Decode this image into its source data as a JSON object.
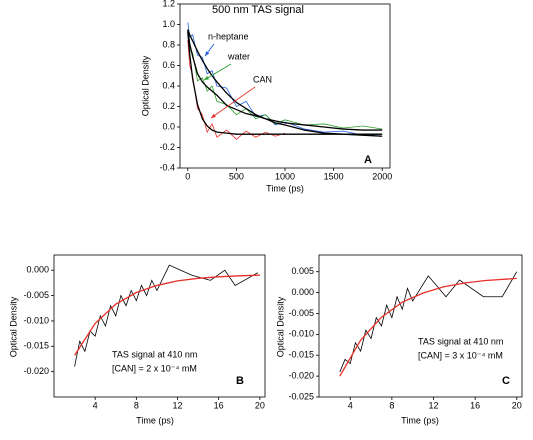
{
  "chart_data": [
    {
      "type": "line",
      "panel_label": "A",
      "x_label": "Time (ps)",
      "y_label": "Optical Density",
      "x": [
        0,
        20,
        50,
        100,
        150,
        200,
        250,
        300,
        400,
        500,
        600,
        700,
        800,
        900,
        1000,
        1200,
        1400,
        1600,
        1800,
        2000
      ],
      "series": [
        {
          "name": "n-heptane",
          "color": "#1f5fd8",
          "values": [
            1.02,
            0.88,
            0.9,
            0.7,
            0.68,
            0.52,
            0.55,
            0.4,
            0.38,
            0.2,
            0.25,
            0.1,
            0.12,
            0.02,
            0.05,
            -0.02,
            -0.05,
            -0.04,
            -0.08,
            -0.07
          ]
        },
        {
          "name": "water",
          "color": "#2ca02c",
          "values": [
            0.92,
            0.75,
            0.72,
            0.45,
            0.48,
            0.35,
            0.4,
            0.25,
            0.22,
            0.12,
            0.18,
            0.08,
            0.12,
            0.03,
            0.07,
            0.02,
            0.03,
            -0.01,
            0.01,
            -0.02
          ]
        },
        {
          "name": "CAN",
          "color": "#e8302a",
          "values": [
            0.85,
            0.6,
            0.5,
            0.18,
            0.12,
            -0.05,
            0.03,
            -0.1,
            -0.03,
            -0.12,
            -0.04,
            -0.1,
            -0.05,
            -0.09,
            -0.06,
            null,
            null,
            null,
            null,
            null
          ]
        },
        {
          "color": "#000000",
          "values": [
            0.95,
            0.9,
            0.84,
            0.74,
            0.65,
            0.57,
            0.5,
            0.44,
            0.33,
            0.24,
            0.18,
            0.12,
            0.08,
            0.04,
            0.02,
            -0.03,
            -0.06,
            -0.07,
            -0.08,
            -0.09
          ]
        },
        {
          "color": "#000000",
          "values": [
            0.95,
            0.81,
            0.69,
            0.52,
            0.44,
            0.39,
            0.35,
            0.31,
            0.21,
            0.17,
            0.13,
            0.11,
            0.08,
            0.06,
            0.04,
            0.02,
            0.0,
            -0.02,
            -0.03,
            -0.03
          ]
        },
        {
          "color": "#000000",
          "values": [
            0.93,
            0.71,
            0.47,
            0.22,
            0.08,
            0.01,
            -0.03,
            -0.05,
            -0.06,
            -0.07,
            -0.07,
            -0.07,
            -0.07,
            -0.07,
            -0.07,
            -0.07,
            -0.07,
            -0.07,
            -0.07,
            -0.07
          ]
        }
      ],
      "annotations": [
        {
          "text": "500 nm TAS signal",
          "color": "#000000"
        },
        {
          "text": "n-heptane",
          "color": "#1f5fd8"
        },
        {
          "text": "water",
          "color": "#2ca02c"
        },
        {
          "text": "CAN",
          "color": "#e8302a"
        }
      ],
      "xlim": [
        -80,
        2080
      ],
      "xticks": [
        0,
        500,
        1000,
        1500,
        2000
      ],
      "ylim": [
        -0.4,
        1.2
      ],
      "yticks": [
        1.2,
        {
          "value": 1,
          "label": "1.0"
        },
        0.8,
        0.6,
        0.4,
        0.2,
        {
          "value": 0,
          "label": "0.0"
        },
        -0.2,
        -0.4
      ]
    },
    {
      "type": "line",
      "panel_label": "B",
      "x_label": "Time (ps)",
      "y_label": "Optical Density",
      "series": [
        {
          "color": "#000000",
          "x": [
            2,
            2.5,
            3,
            3.5,
            4,
            4.5,
            5,
            5.5,
            6,
            6.5,
            7,
            7.5,
            8,
            8.5,
            9,
            9.5,
            10,
            11.2,
            13.4,
            15.2,
            16.6,
            17.6,
            19.8
          ],
          "values": [
            -0.019,
            -0.014,
            -0.016,
            -0.012,
            -0.013,
            -0.009,
            -0.011,
            -0.007,
            -0.009,
            -0.005,
            -0.007,
            -0.004,
            -0.006,
            -0.003,
            -0.005,
            -0.002,
            -0.004,
            0.001,
            -0.001,
            -0.002,
            0.0,
            -0.003,
            -0.0005
          ]
        },
        {
          "color": "#e8302a",
          "x": [
            2,
            4,
            6,
            8,
            10,
            12,
            14,
            16,
            18,
            20
          ],
          "values": [
            -0.0168,
            -0.0105,
            -0.0067,
            -0.0044,
            -0.003,
            -0.0021,
            -0.0016,
            -0.0013,
            -0.0011,
            -0.00098
          ]
        }
      ],
      "annotations": [
        {
          "text": "TAS signal at 410 nm",
          "color": "#000000"
        },
        {
          "text": "[CAN] = 2 x 10⁻⁴ mM",
          "color": "#000000"
        }
      ],
      "xlim": [
        0,
        20.5
      ],
      "xticks": [
        4,
        8,
        12,
        16,
        20
      ],
      "ylim": [
        -0.025,
        0.003
      ],
      "yticks": [
        {
          "value": 0,
          "label": "0.000"
        },
        -0.005,
        {
          "value": -0.01,
          "label": "-0.010"
        },
        -0.015,
        {
          "value": -0.02,
          "label": "-0.020"
        }
      ]
    },
    {
      "type": "line",
      "panel_label": "C",
      "x_label": "Time (ps)",
      "y_label": "Optical Density",
      "series": [
        {
          "color": "#000000",
          "x": [
            3,
            3.5,
            4,
            4.5,
            5,
            5.5,
            6,
            6.5,
            7,
            7.5,
            8,
            8.5,
            9,
            9.5,
            10,
            11.5,
            13.2,
            14.5,
            16.8,
            18.6,
            20
          ],
          "values": [
            -0.019,
            -0.016,
            -0.017,
            -0.012,
            -0.014,
            -0.009,
            -0.011,
            -0.006,
            -0.008,
            -0.003,
            -0.006,
            -0.001,
            -0.004,
            0.001,
            -0.002,
            0.004,
            -0.001,
            0.003,
            -0.001,
            -0.001,
            0.005
          ]
        },
        {
          "color": "#e8302a",
          "x": [
            3,
            5,
            7,
            9,
            11,
            13,
            15,
            17,
            20
          ],
          "values": [
            -0.02,
            -0.0114,
            -0.0059,
            -0.0023,
            -0.0001,
            0.0014,
            0.0023,
            0.0029,
            0.0034
          ]
        }
      ],
      "annotations": [
        {
          "text": "TAS signal at 410 nm",
          "color": "#000000"
        },
        {
          "text": "[CAN] = 3 x 10⁻⁴ mM",
          "color": "#000000"
        }
      ],
      "xlim": [
        1,
        20.5
      ],
      "xticks": [
        4,
        8,
        12,
        16,
        20
      ],
      "ylim": [
        -0.025,
        0.009
      ],
      "yticks": [
        0.005,
        {
          "value": 0,
          "label": "0.000"
        },
        -0.005,
        {
          "value": -0.01,
          "label": "-0.010"
        },
        -0.015,
        {
          "value": -0.02,
          "label": "-0.020"
        },
        -0.025
      ]
    }
  ]
}
